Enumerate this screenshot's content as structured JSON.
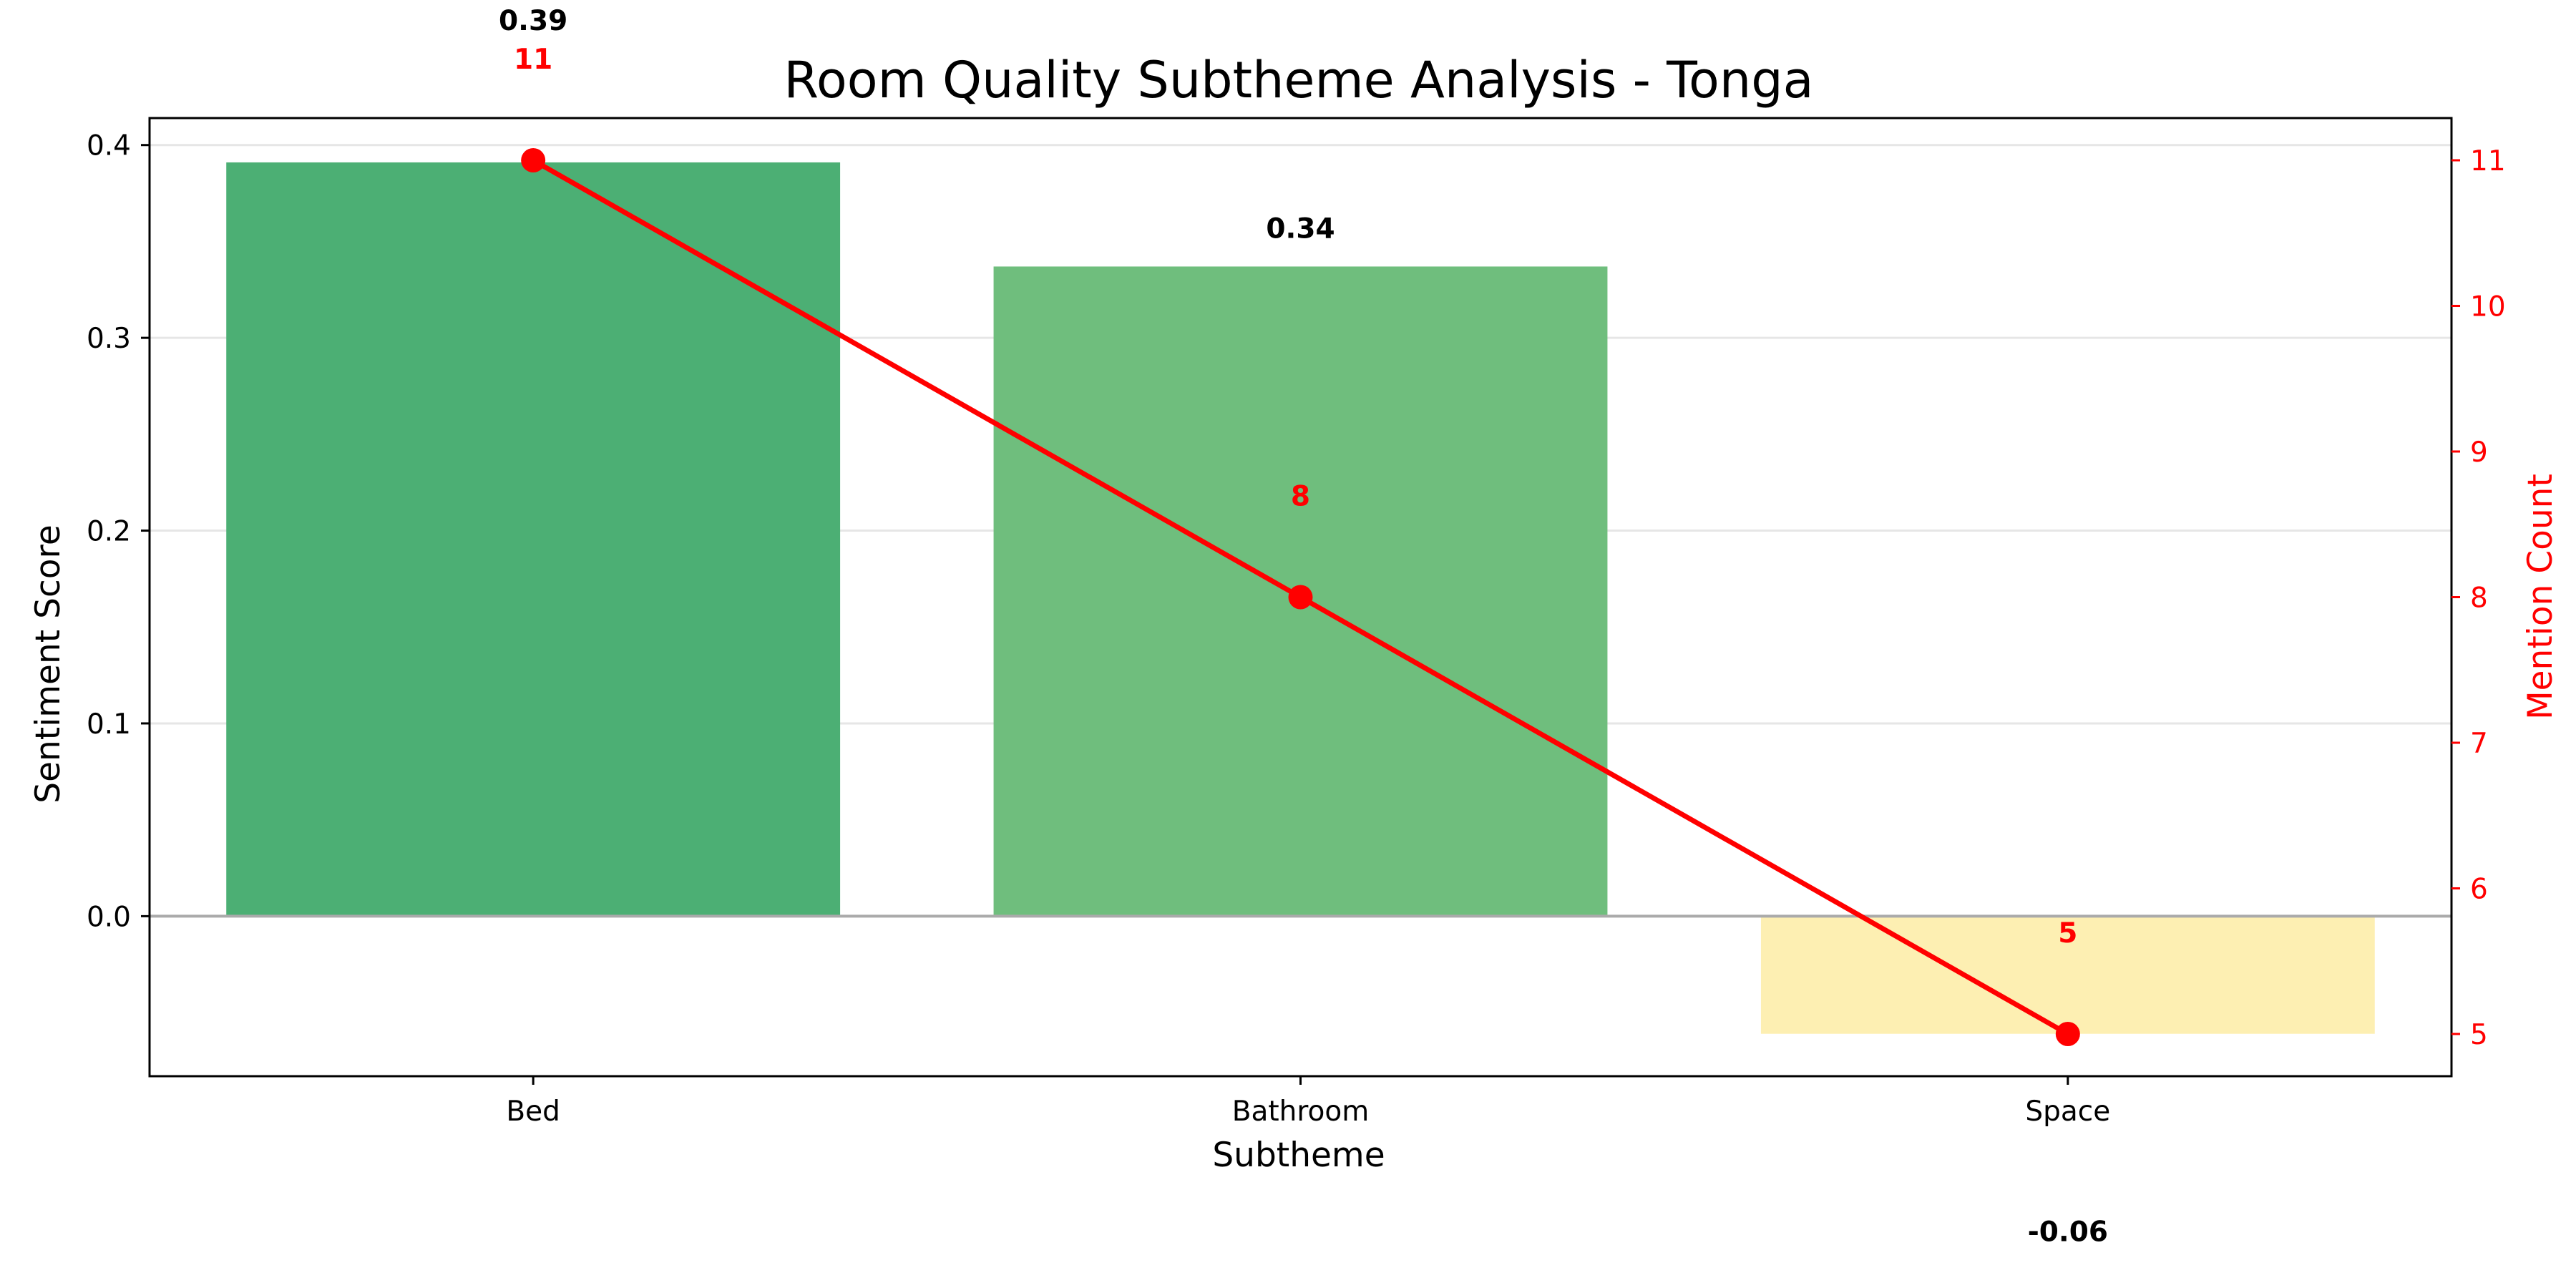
{
  "chart_data": {
    "type": "bar",
    "title": "Room Quality Subtheme Analysis - Tonga",
    "xlabel": "Subtheme",
    "ylabel": "Sentiment Score",
    "y2label": "Mention Count",
    "categories": [
      "Bed",
      "Bathroom",
      "Space"
    ],
    "series": [
      {
        "kind": "bar",
        "axis": "left",
        "values": [
          0.391,
          0.337,
          -0.061
        ],
        "labels": [
          "0.39",
          "0.34",
          "-0.06"
        ],
        "colors": [
          "#4caf74",
          "#6fbe7d",
          "#fdefb2"
        ]
      },
      {
        "kind": "line",
        "axis": "right",
        "values": [
          11,
          8,
          5
        ],
        "labels": [
          "11",
          "8",
          "5"
        ],
        "color": "#ff0000"
      }
    ],
    "ylim": [
      -0.083,
      0.414
    ],
    "y2lim": [
      4.71,
      11.29
    ],
    "yticks": [
      {
        "value": 0.0,
        "label": "0.0"
      },
      {
        "value": 0.1,
        "label": "0.1"
      },
      {
        "value": 0.2,
        "label": "0.2"
      },
      {
        "value": 0.3,
        "label": "0.3"
      },
      {
        "value": 0.4,
        "label": "0.4"
      }
    ],
    "y2ticks": [
      {
        "value": 5,
        "label": "5"
      },
      {
        "value": 6,
        "label": "6"
      },
      {
        "value": 7,
        "label": "7"
      },
      {
        "value": 8,
        "label": "8"
      },
      {
        "value": 9,
        "label": "9"
      },
      {
        "value": 10,
        "label": "10"
      },
      {
        "value": 11,
        "label": "11"
      }
    ],
    "grid": true,
    "legend": "none"
  }
}
